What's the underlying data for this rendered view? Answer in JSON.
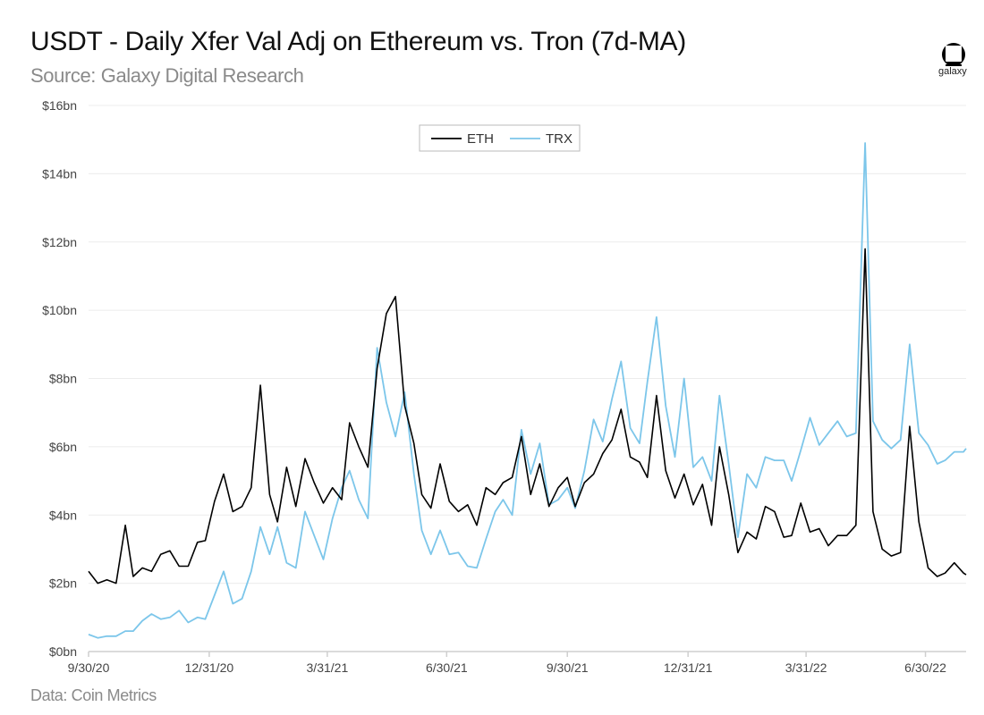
{
  "header": {
    "title": "USDT - Daily Xfer Val Adj on Ethereum vs. Tron (7d-MA)",
    "subtitle": "Source: Galaxy Digital Research",
    "logo_text": "galaxy"
  },
  "footer": {
    "source": "Data: Coin Metrics"
  },
  "chart_data": {
    "type": "line",
    "title": "USDT - Daily Xfer Val Adj on Ethereum vs. Tron (7d-MA)",
    "xlabel": "",
    "ylabel": "",
    "ylim": [
      0,
      16
    ],
    "xlim": [
      "2020-09-30",
      "2022-07-31"
    ],
    "y_ticks": [
      0,
      2,
      4,
      6,
      8,
      10,
      12,
      14,
      16
    ],
    "y_tick_labels": [
      "$0bn",
      "$2bn",
      "$4bn",
      "$6bn",
      "$8bn",
      "$10bn",
      "$12bn",
      "$14bn",
      "$16bn"
    ],
    "x_ticks": [
      "2020-09-30",
      "2020-12-31",
      "2021-03-31",
      "2021-06-30",
      "2021-09-30",
      "2021-12-31",
      "2022-03-31",
      "2022-06-30"
    ],
    "x_tick_labels": [
      "9/30/20",
      "12/31/20",
      "3/31/21",
      "6/30/21",
      "9/30/21",
      "12/31/21",
      "3/31/22",
      "6/30/22"
    ],
    "grid": "horizontal",
    "legend_position": "top-center",
    "x": [
      "2020-09-30",
      "2020-10-07",
      "2020-10-14",
      "2020-10-21",
      "2020-10-28",
      "2020-11-03",
      "2020-11-10",
      "2020-11-17",
      "2020-11-24",
      "2020-12-01",
      "2020-12-08",
      "2020-12-15",
      "2020-12-22",
      "2020-12-28",
      "2021-01-04",
      "2021-01-11",
      "2021-01-18",
      "2021-01-25",
      "2021-02-01",
      "2021-02-08",
      "2021-02-15",
      "2021-02-21",
      "2021-02-28",
      "2021-03-07",
      "2021-03-14",
      "2021-03-21",
      "2021-03-28",
      "2021-04-04",
      "2021-04-11",
      "2021-04-17",
      "2021-04-24",
      "2021-05-01",
      "2021-05-08",
      "2021-05-15",
      "2021-05-22",
      "2021-05-29",
      "2021-06-05",
      "2021-06-11",
      "2021-06-18",
      "2021-06-25",
      "2021-07-02",
      "2021-07-09",
      "2021-07-16",
      "2021-07-23",
      "2021-07-30",
      "2021-08-06",
      "2021-08-12",
      "2021-08-19",
      "2021-08-26",
      "2021-09-02",
      "2021-09-09",
      "2021-09-16",
      "2021-09-23",
      "2021-09-30",
      "2021-10-06",
      "2021-10-13",
      "2021-10-20",
      "2021-10-27",
      "2021-11-03",
      "2021-11-10",
      "2021-11-17",
      "2021-11-24",
      "2021-11-30",
      "2021-12-07",
      "2021-12-14",
      "2021-12-21",
      "2021-12-28",
      "2022-01-04",
      "2022-01-11",
      "2022-01-18",
      "2022-01-24",
      "2022-01-31",
      "2022-02-07",
      "2022-02-14",
      "2022-02-21",
      "2022-02-28",
      "2022-03-07",
      "2022-03-14",
      "2022-03-20",
      "2022-03-27",
      "2022-04-03",
      "2022-04-10",
      "2022-04-17",
      "2022-04-24",
      "2022-05-01",
      "2022-05-08",
      "2022-05-15",
      "2022-05-21",
      "2022-05-28",
      "2022-06-04",
      "2022-06-11",
      "2022-06-18",
      "2022-06-25",
      "2022-07-02",
      "2022-07-09",
      "2022-07-15",
      "2022-07-22",
      "2022-07-29",
      "2022-07-31"
    ],
    "series": [
      {
        "name": "ETH",
        "color": "#000000",
        "values": [
          2.35,
          2.0,
          2.1,
          2.0,
          3.7,
          2.2,
          2.45,
          2.35,
          2.85,
          2.95,
          2.5,
          2.5,
          3.2,
          3.25,
          4.4,
          5.2,
          4.1,
          4.25,
          4.8,
          7.8,
          4.6,
          3.8,
          5.4,
          4.25,
          5.65,
          4.95,
          4.35,
          4.8,
          4.45,
          6.7,
          6.0,
          5.4,
          8.3,
          9.9,
          10.4,
          7.2,
          6.1,
          4.6,
          4.2,
          5.5,
          4.4,
          4.1,
          4.3,
          3.7,
          4.8,
          4.6,
          4.95,
          5.1,
          6.3,
          4.6,
          5.5,
          4.25,
          4.8,
          5.1,
          4.25,
          4.95,
          5.2,
          5.8,
          6.2,
          7.1,
          5.7,
          5.55,
          5.1,
          7.5,
          5.3,
          4.5,
          5.2,
          4.3,
          4.9,
          3.7,
          6.0,
          4.6,
          2.9,
          3.5,
          3.3,
          4.25,
          4.1,
          3.35,
          3.4,
          4.35,
          3.5,
          3.6,
          3.1,
          3.4,
          3.4,
          3.7,
          11.8,
          4.1,
          3.0,
          2.8,
          2.9,
          6.6,
          3.8,
          2.45,
          2.2,
          2.3,
          2.6,
          2.3,
          2.25
        ]
      },
      {
        "name": "TRX",
        "color": "#7cc6ea",
        "values": [
          0.5,
          0.4,
          0.45,
          0.45,
          0.6,
          0.6,
          0.9,
          1.1,
          0.95,
          1.0,
          1.2,
          0.85,
          1.0,
          0.95,
          1.65,
          2.35,
          1.4,
          1.55,
          2.35,
          3.65,
          2.85,
          3.65,
          2.6,
          2.45,
          4.1,
          3.4,
          2.7,
          3.9,
          4.8,
          5.3,
          4.45,
          3.9,
          8.9,
          7.3,
          6.3,
          7.6,
          5.2,
          3.55,
          2.85,
          3.55,
          2.85,
          2.9,
          2.5,
          2.45,
          3.3,
          4.1,
          4.45,
          4.0,
          6.5,
          5.2,
          6.1,
          4.3,
          4.45,
          4.8,
          4.2,
          5.3,
          6.8,
          6.15,
          7.4,
          8.5,
          6.55,
          6.1,
          7.9,
          9.8,
          7.2,
          5.7,
          8.0,
          5.4,
          5.7,
          5.0,
          7.5,
          5.5,
          3.35,
          5.2,
          4.8,
          5.7,
          5.6,
          5.6,
          5.0,
          5.9,
          6.85,
          6.05,
          6.4,
          6.75,
          6.3,
          6.4,
          14.9,
          6.75,
          6.2,
          5.95,
          6.2,
          9.0,
          6.4,
          6.05,
          5.5,
          5.6,
          5.85,
          5.85,
          5.95
        ]
      }
    ]
  }
}
